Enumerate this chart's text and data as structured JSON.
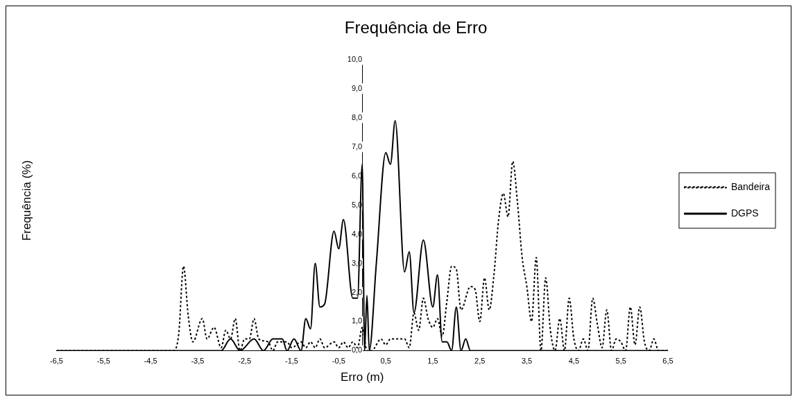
{
  "chart_data": {
    "type": "line",
    "title": "Frequência de Erro",
    "xlabel": "Erro (m)",
    "ylabel": "Frequência (%)",
    "xlim": [
      -6.5,
      6.5
    ],
    "ylim": [
      0,
      10
    ],
    "xticks": [
      {
        "value": -6.5,
        "label": "-6,5"
      },
      {
        "value": -5.5,
        "label": "-5,5"
      },
      {
        "value": -4.5,
        "label": "-4,5"
      },
      {
        "value": -3.5,
        "label": "-3,5"
      },
      {
        "value": -2.5,
        "label": "-2,5"
      },
      {
        "value": -1.5,
        "label": "-1,5"
      },
      {
        "value": -0.5,
        "label": "-0,5"
      },
      {
        "value": 0.5,
        "label": "0,5"
      },
      {
        "value": 1.5,
        "label": "1,5"
      },
      {
        "value": 2.5,
        "label": "2,5"
      },
      {
        "value": 3.5,
        "label": "3,5"
      },
      {
        "value": 4.5,
        "label": "4,5"
      },
      {
        "value": 5.5,
        "label": "5,5"
      },
      {
        "value": 6.5,
        "label": "6,5"
      }
    ],
    "yticks": [
      {
        "value": 0,
        "label": "0,0"
      },
      {
        "value": 1,
        "label": "1,0"
      },
      {
        "value": 2,
        "label": "2,0"
      },
      {
        "value": 3,
        "label": "3,0"
      },
      {
        "value": 4,
        "label": "4,0"
      },
      {
        "value": 5,
        "label": "5,0"
      },
      {
        "value": 6,
        "label": "6,0"
      },
      {
        "value": 7,
        "label": "7,0"
      },
      {
        "value": 8,
        "label": "8,0"
      },
      {
        "value": 9,
        "label": "9,0"
      },
      {
        "value": 10,
        "label": "10,0"
      }
    ],
    "grid": false,
    "legend": "right",
    "marker": "none",
    "series": [
      {
        "name": "Bandeira",
        "color": "#000000",
        "line_style": "dotted",
        "x": [
          -6.5,
          -4.1,
          -4.0,
          -3.9,
          -3.8,
          -3.7,
          -3.6,
          -3.4,
          -3.3,
          -3.15,
          -3.0,
          -2.9,
          -2.8,
          -2.7,
          -2.6,
          -2.5,
          -2.4,
          -2.3,
          -2.2,
          -2.0,
          -1.9,
          -1.8,
          -1.6,
          -1.5,
          -1.3,
          -1.2,
          -1.1,
          -1.0,
          -0.9,
          -0.8,
          -0.6,
          -0.5,
          -0.4,
          -0.3,
          -0.2,
          -0.1,
          0.0,
          0.1,
          0.2,
          0.4,
          0.5,
          0.6,
          0.8,
          0.9,
          1.0,
          1.1,
          1.2,
          1.3,
          1.4,
          1.5,
          1.6,
          1.7,
          1.8,
          1.9,
          2.0,
          2.1,
          2.3,
          2.4,
          2.5,
          2.6,
          2.7,
          2.8,
          2.9,
          3.0,
          3.1,
          3.2,
          3.3,
          3.4,
          3.5,
          3.6,
          3.7,
          3.8,
          3.9,
          4.0,
          4.1,
          4.2,
          4.3,
          4.4,
          4.5,
          4.6,
          4.7,
          4.8,
          4.9,
          5.0,
          5.1,
          5.2,
          5.3,
          5.4,
          5.5,
          5.6,
          5.7,
          5.8,
          5.9,
          6.0,
          6.1,
          6.2,
          6.3,
          6.5
        ],
        "values": [
          0,
          0,
          0,
          0.6,
          2.9,
          1.2,
          0.3,
          1.1,
          0.4,
          0.8,
          0.1,
          0.7,
          0.4,
          1.1,
          0,
          0.4,
          0.4,
          1.1,
          0.4,
          0.3,
          0,
          0.3,
          0.3,
          0.1,
          0.3,
          0.1,
          0.3,
          0.1,
          0.4,
          0.1,
          0.3,
          0.1,
          0.3,
          0.1,
          0.3,
          0.1,
          0.8,
          0,
          0,
          0.4,
          0.2,
          0.4,
          0.4,
          0.4,
          0.1,
          1.3,
          0.7,
          1.8,
          1.1,
          0.8,
          1.1,
          0.5,
          1.7,
          2.9,
          2.8,
          1.4,
          2.2,
          2.1,
          1.0,
          2.5,
          1.4,
          2.6,
          4.5,
          5.4,
          4.6,
          6.5,
          5.1,
          3.2,
          2.2,
          1.0,
          3.2,
          0,
          2.5,
          0.7,
          0,
          1.1,
          0,
          1.8,
          0.4,
          0,
          0.4,
          0,
          1.8,
          0.9,
          0.1,
          1.4,
          0,
          0.4,
          0.3,
          0,
          1.5,
          0.2,
          1.5,
          0.3,
          0,
          0.4,
          0,
          0
        ]
      },
      {
        "name": "DGPS",
        "color": "#000000",
        "line_style": "solid",
        "x": [
          -6.5,
          -3.0,
          -2.8,
          -2.6,
          -2.3,
          -2.1,
          -1.9,
          -1.7,
          -1.6,
          -1.45,
          -1.3,
          -1.2,
          -1.1,
          -1.0,
          -0.9,
          -0.8,
          -0.6,
          -0.5,
          -0.4,
          -0.2,
          -0.1,
          0.0,
          0.05,
          0.1,
          0.15,
          0.3,
          0.5,
          0.6,
          0.7,
          0.9,
          1.0,
          1.1,
          1.3,
          1.5,
          1.6,
          1.7,
          1.8,
          1.9,
          2.0,
          2.1,
          2.2,
          2.3,
          6.5
        ],
        "values": [
          0,
          0,
          0.4,
          0,
          0.4,
          0,
          0.4,
          0.4,
          0,
          0.4,
          0,
          1.1,
          0.75,
          3.0,
          1.5,
          1.6,
          4.1,
          3.5,
          4.5,
          1.8,
          1.8,
          6.4,
          0,
          1.9,
          0,
          3.0,
          6.8,
          6.4,
          7.9,
          2.7,
          3.4,
          1.3,
          3.8,
          1.5,
          2.6,
          0.3,
          0.3,
          0,
          1.5,
          0,
          0.4,
          0,
          0
        ]
      }
    ]
  }
}
